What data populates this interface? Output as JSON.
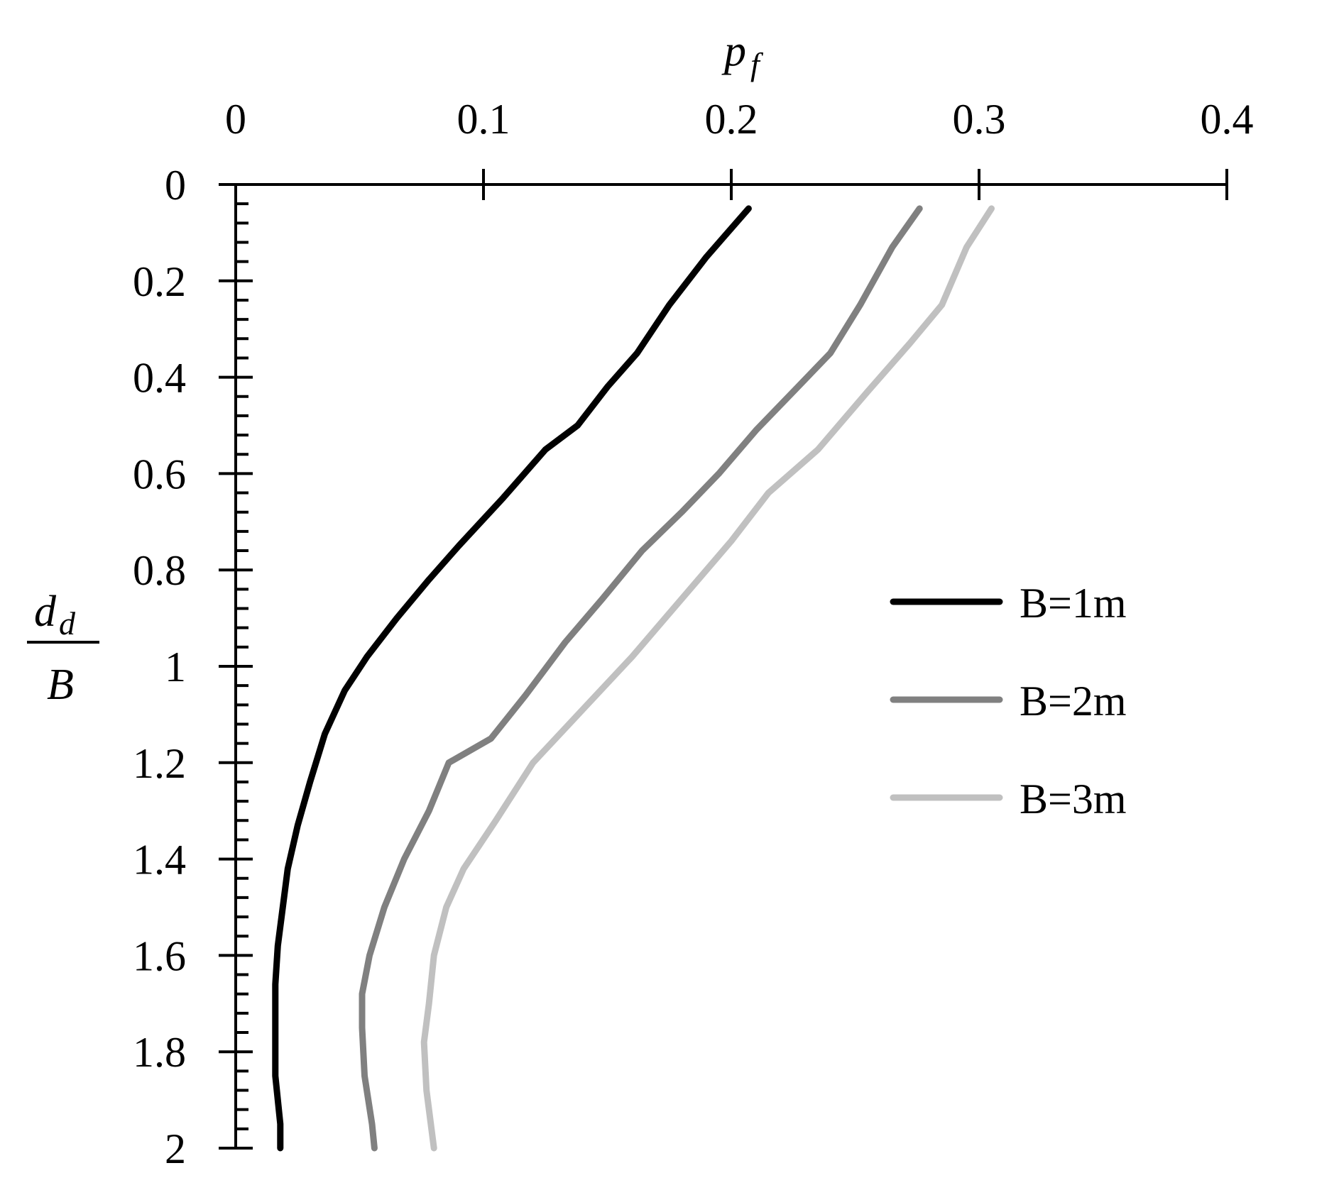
{
  "chart_data": {
    "type": "line",
    "x_axis": {
      "label_main": "p",
      "label_sub": "f",
      "position": "top",
      "range": [
        0,
        0.4
      ],
      "ticks": [
        0,
        0.1,
        0.2,
        0.3,
        0.4
      ],
      "tick_labels": [
        "0",
        "0.1",
        "0.2",
        "0.3",
        "0.4"
      ]
    },
    "y_axis": {
      "label_numerator_main": "d",
      "label_numerator_sub": "d",
      "label_denominator": "B",
      "range": [
        0,
        2
      ],
      "inverted": true,
      "ticks": [
        0,
        0.2,
        0.4,
        0.6,
        0.8,
        1,
        1.2,
        1.4,
        1.6,
        1.8,
        2
      ],
      "tick_labels": [
        "0",
        "0.2",
        "0.4",
        "0.6",
        "0.8",
        "1",
        "1.2",
        "1.4",
        "1.6",
        "1.8",
        "2"
      ],
      "minor_tick_step": 0.04
    },
    "grid": false,
    "legend_position": "right-middle",
    "series": [
      {
        "name": "B=1m",
        "color": "#000000",
        "points": [
          [
            0.207,
            0.05
          ],
          [
            0.19,
            0.15
          ],
          [
            0.175,
            0.25
          ],
          [
            0.162,
            0.35
          ],
          [
            0.15,
            0.42
          ],
          [
            0.138,
            0.5
          ],
          [
            0.125,
            0.55
          ],
          [
            0.108,
            0.65
          ],
          [
            0.09,
            0.75
          ],
          [
            0.078,
            0.82
          ],
          [
            0.065,
            0.9
          ],
          [
            0.053,
            0.98
          ],
          [
            0.044,
            1.05
          ],
          [
            0.036,
            1.14
          ],
          [
            0.03,
            1.24
          ],
          [
            0.025,
            1.33
          ],
          [
            0.021,
            1.42
          ],
          [
            0.019,
            1.5
          ],
          [
            0.017,
            1.58
          ],
          [
            0.016,
            1.66
          ],
          [
            0.016,
            1.75
          ],
          [
            0.016,
            1.85
          ],
          [
            0.018,
            1.95
          ],
          [
            0.018,
            2.0
          ]
        ]
      },
      {
        "name": "B=2m",
        "color": "#808080",
        "points": [
          [
            0.276,
            0.05
          ],
          [
            0.265,
            0.13
          ],
          [
            0.252,
            0.25
          ],
          [
            0.24,
            0.35
          ],
          [
            0.225,
            0.43
          ],
          [
            0.21,
            0.51
          ],
          [
            0.195,
            0.6
          ],
          [
            0.18,
            0.68
          ],
          [
            0.164,
            0.76
          ],
          [
            0.148,
            0.86
          ],
          [
            0.133,
            0.95
          ],
          [
            0.117,
            1.06
          ],
          [
            0.103,
            1.15
          ],
          [
            0.086,
            1.2
          ],
          [
            0.078,
            1.3
          ],
          [
            0.068,
            1.4
          ],
          [
            0.06,
            1.5
          ],
          [
            0.054,
            1.6
          ],
          [
            0.051,
            1.68
          ],
          [
            0.051,
            1.75
          ],
          [
            0.052,
            1.85
          ],
          [
            0.055,
            1.95
          ],
          [
            0.056,
            2.0
          ]
        ]
      },
      {
        "name": "B=3m",
        "color": "#c0c0c0",
        "points": [
          [
            0.305,
            0.05
          ],
          [
            0.295,
            0.13
          ],
          [
            0.285,
            0.25
          ],
          [
            0.272,
            0.33
          ],
          [
            0.255,
            0.43
          ],
          [
            0.235,
            0.55
          ],
          [
            0.215,
            0.64
          ],
          [
            0.2,
            0.74
          ],
          [
            0.18,
            0.86
          ],
          [
            0.16,
            0.98
          ],
          [
            0.14,
            1.09
          ],
          [
            0.12,
            1.2
          ],
          [
            0.105,
            1.32
          ],
          [
            0.092,
            1.42
          ],
          [
            0.085,
            1.5
          ],
          [
            0.08,
            1.6
          ],
          [
            0.078,
            1.7
          ],
          [
            0.076,
            1.78
          ],
          [
            0.077,
            1.88
          ],
          [
            0.079,
            1.96
          ],
          [
            0.08,
            2.0
          ]
        ]
      }
    ]
  }
}
